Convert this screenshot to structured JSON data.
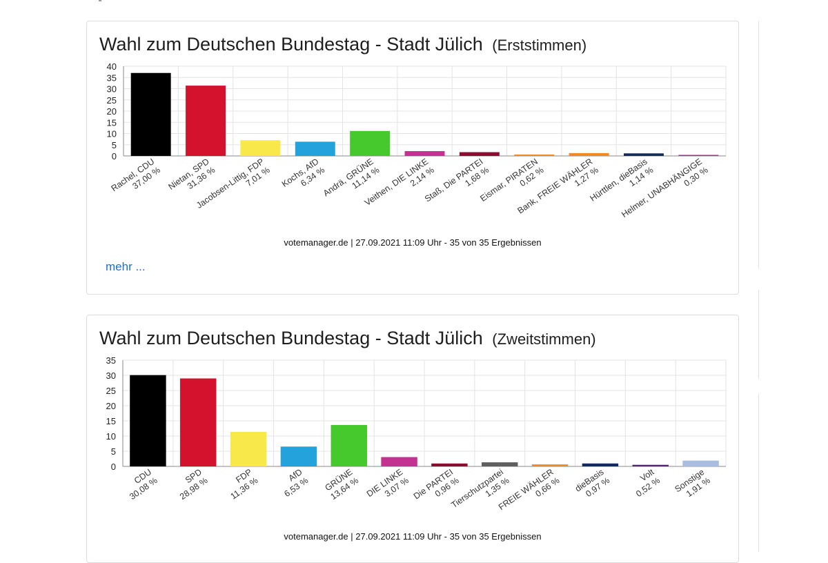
{
  "page": {
    "more_link": "mehr ..."
  },
  "chart_data": [
    {
      "type": "bar",
      "title": "Wahl zum Deutschen Bundestag - Stadt Jülich",
      "subtitle": "(Erststimmen)",
      "source": "votemanager.de | 27.09.2021 11:09 Uhr - 35 von 35 Ergebnissen",
      "ylim": [
        0,
        40
      ],
      "yticks": [
        0,
        5,
        10,
        15,
        20,
        25,
        30,
        35,
        40
      ],
      "grid": true,
      "categories": [
        "Rachel, CDU",
        "Nietan, SPD",
        "Jacobsen-Littig, FDP",
        "Kochs, AfD",
        "Andrä, GRÜNE",
        "Veithen, DIE LINKE",
        "Staß, Die PARTEI",
        "Eismar, PIRATEN",
        "Bank, FREIE WÄHLER",
        "Hürttlen, dieBasis",
        "Helmer, UNABHÄNGIGE"
      ],
      "values": [
        37.0,
        31.36,
        7.01,
        6.34,
        11.14,
        2.14,
        1.68,
        0.62,
        1.27,
        1.14,
        0.3
      ],
      "value_labels": [
        "37,00 %",
        "31,36 %",
        "7,01 %",
        "6,34 %",
        "11,14 %",
        "2,14 %",
        "1,68 %",
        "0,62 %",
        "1,27 %",
        "1,14 %",
        "0,30 %"
      ],
      "colors": [
        "#000000",
        "#d5122e",
        "#f8e849",
        "#23a2dc",
        "#46c92d",
        "#c33290",
        "#8a0e2f",
        "#f08a24",
        "#f08a24",
        "#142a5c",
        "#a62d8c"
      ]
    },
    {
      "type": "bar",
      "title": "Wahl zum Deutschen Bundestag - Stadt Jülich",
      "subtitle": "(Zweitstimmen)",
      "source": "votemanager.de | 27.09.2021 11:09 Uhr - 35 von 35 Ergebnissen",
      "ylim": [
        0,
        35
      ],
      "yticks": [
        0,
        5,
        10,
        15,
        20,
        25,
        30,
        35
      ],
      "grid": true,
      "categories": [
        "CDU",
        "SPD",
        "FDP",
        "AfD",
        "GRÜNE",
        "DIE LINKE",
        "Die PARTEI",
        "Tierschutzpartei",
        "FREIE WÄHLER",
        "dieBasis",
        "Volt",
        "Sonstige"
      ],
      "values": [
        30.08,
        28.98,
        11.36,
        6.53,
        13.64,
        3.07,
        0.96,
        1.35,
        0.66,
        0.97,
        0.52,
        1.91
      ],
      "value_labels": [
        "30,08 %",
        "28,98 %",
        "11,36 %",
        "6,53 %",
        "13,64 %",
        "3,07 %",
        "0,96 %",
        "1,35 %",
        "0,66 %",
        "0,97 %",
        "0,52 %",
        "1,91 %"
      ],
      "colors": [
        "#000000",
        "#d5122e",
        "#f8e849",
        "#23a2dc",
        "#46c92d",
        "#c33290",
        "#8a0e2f",
        "#5f5f5f",
        "#f08a24",
        "#142a5c",
        "#52236f",
        "#a8bde0"
      ]
    }
  ]
}
